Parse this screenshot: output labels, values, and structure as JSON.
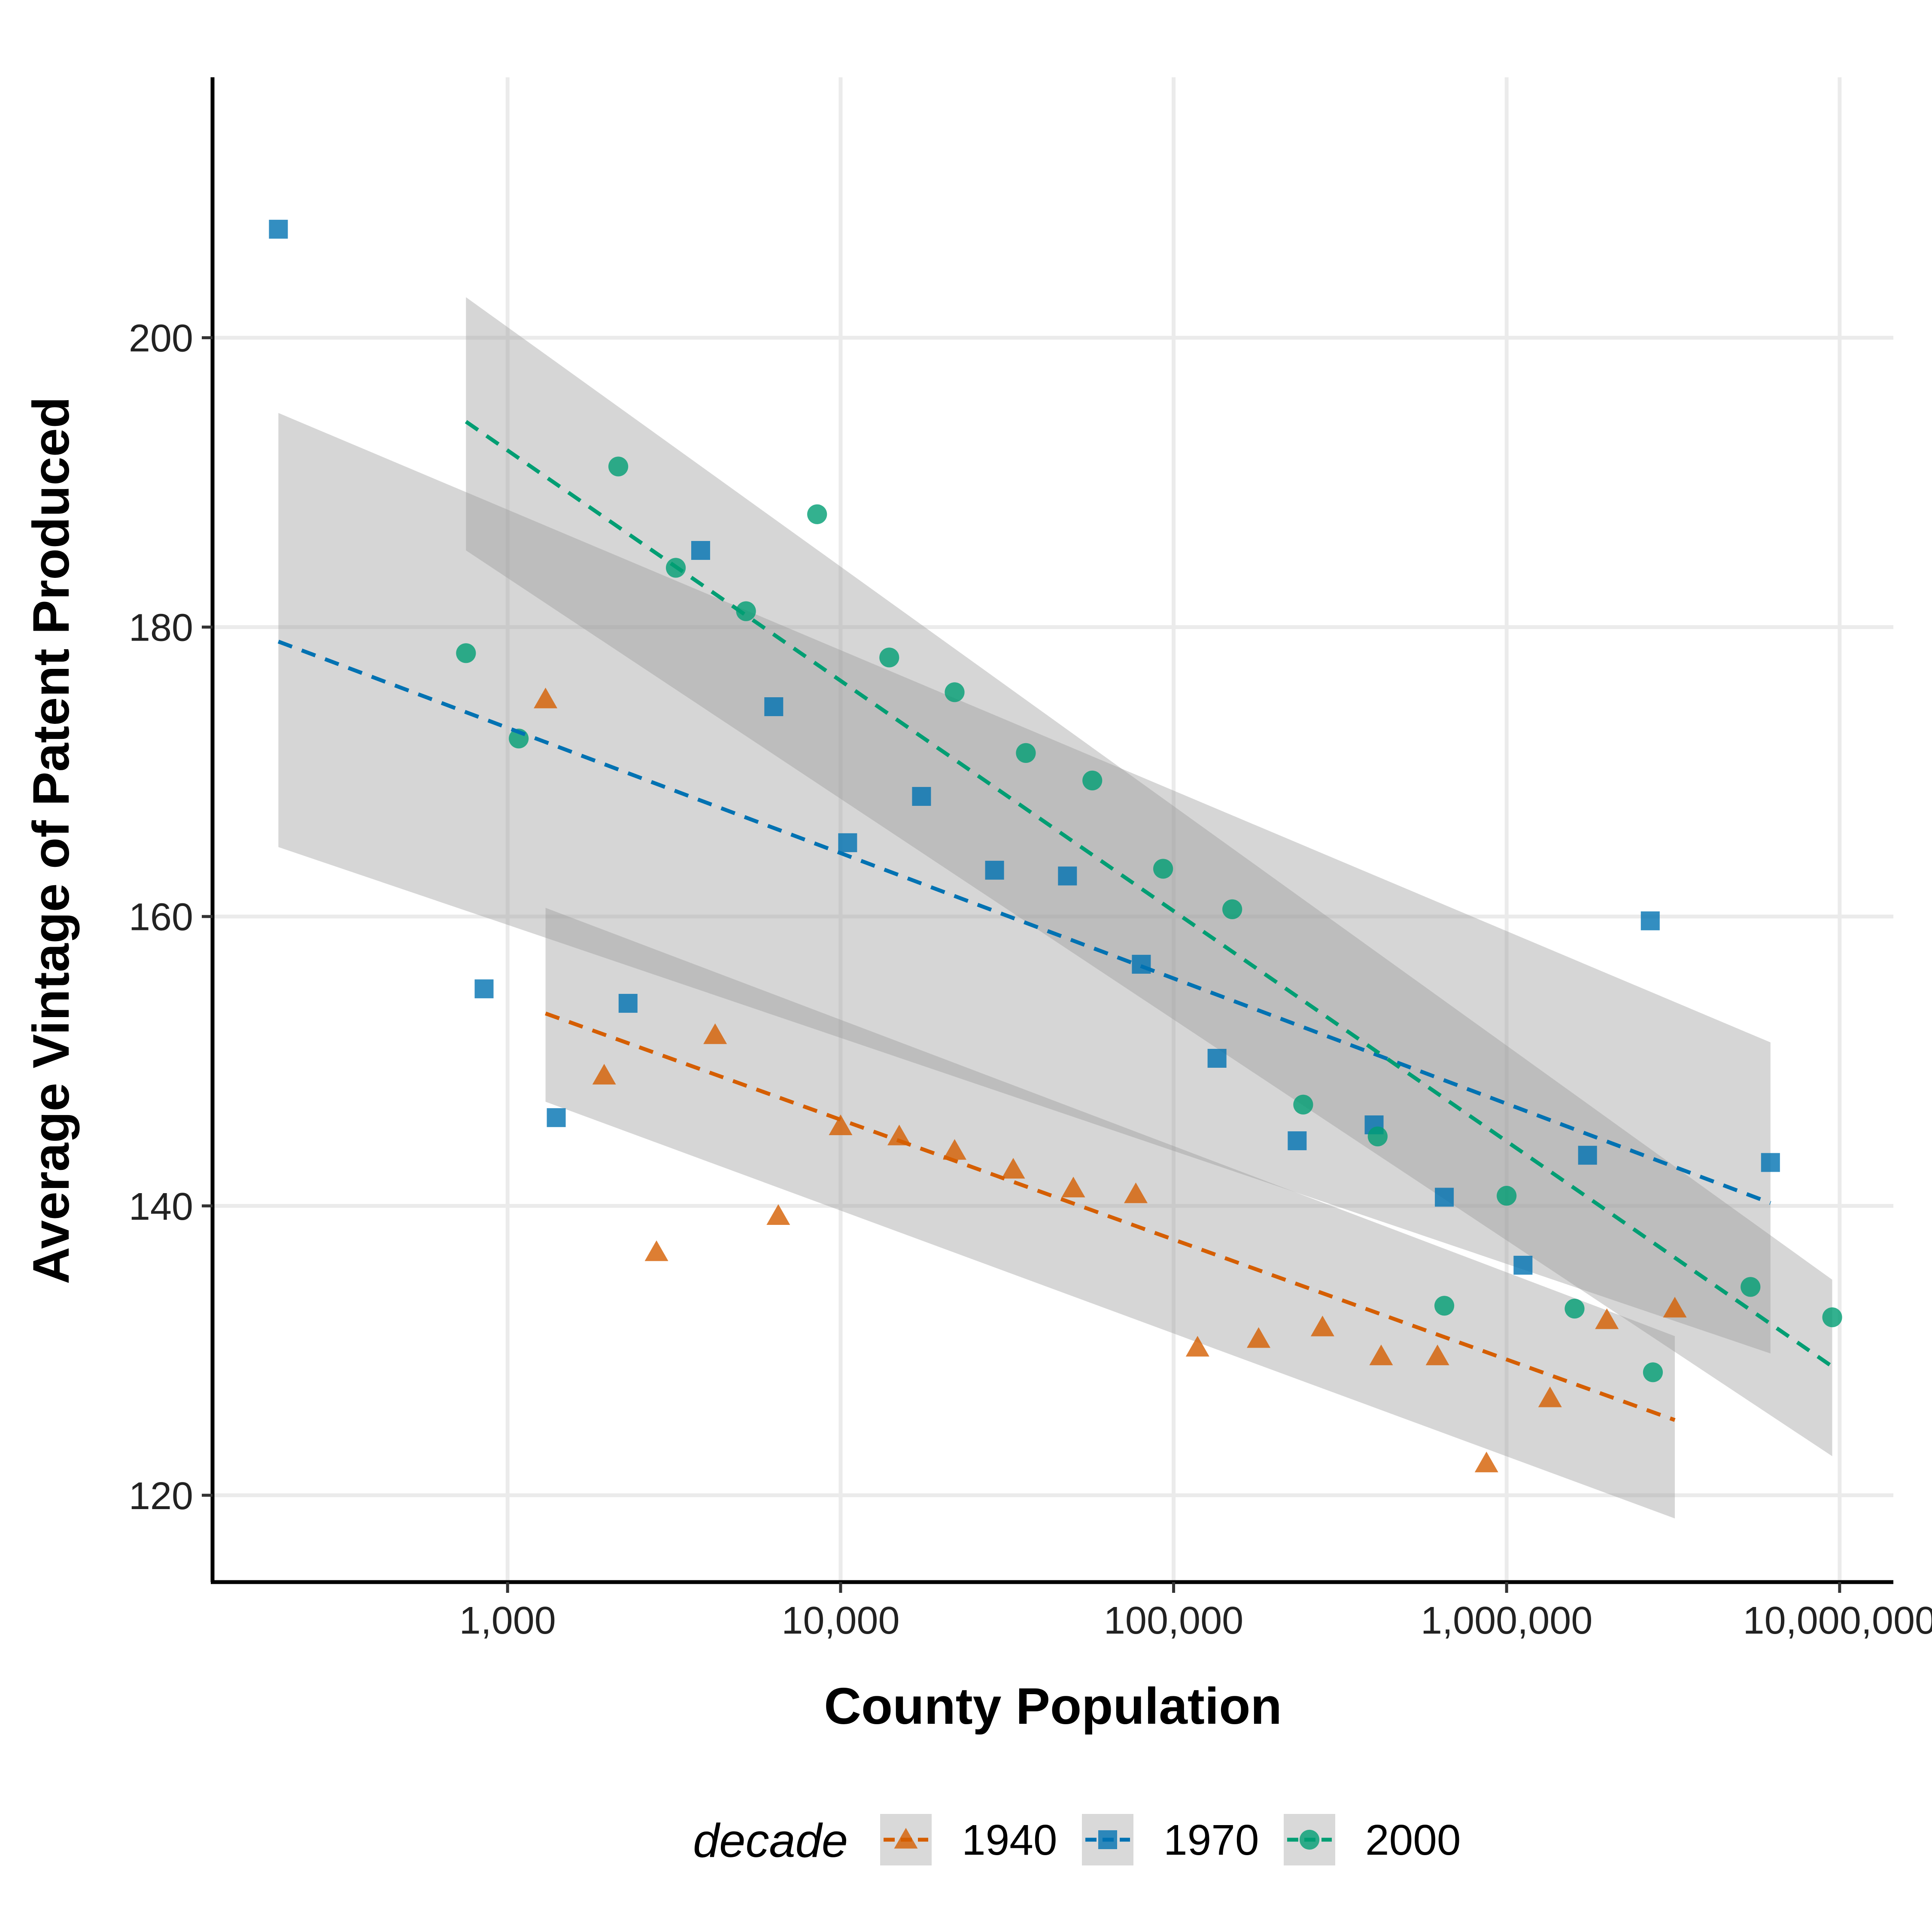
{
  "chart_data": {
    "type": "scatter",
    "xlabel": "County Population",
    "ylabel": "Average Vintage of Patent Produced",
    "x_scale": "log10",
    "xlim": [
      130,
      14500000
    ],
    "ylim": [
      114,
      218
    ],
    "x_ticks": [
      {
        "value": 1000,
        "label": "1,000"
      },
      {
        "value": 10000,
        "label": "10,000"
      },
      {
        "value": 100000,
        "label": "100,000"
      },
      {
        "value": 1000000,
        "label": "1,000,000"
      },
      {
        "value": 10000000,
        "label": "10,000,000"
      }
    ],
    "y_ticks": [
      {
        "value": 120,
        "label": "120"
      },
      {
        "value": 140,
        "label": "140"
      },
      {
        "value": 160,
        "label": "160"
      },
      {
        "value": 180,
        "label": "180"
      },
      {
        "value": 200,
        "label": "200"
      }
    ],
    "grid": true,
    "legend_title": "decade",
    "legend_position": "bottom",
    "series": [
      {
        "name": "1940",
        "marker": "triangle",
        "color": "#D55E00",
        "points": [
          [
            1300,
            175
          ],
          [
            1950,
            149
          ],
          [
            2800,
            136.8
          ],
          [
            4200,
            151.8
          ],
          [
            6500,
            139.3
          ],
          [
            10000,
            145.5
          ],
          [
            15000,
            144.8
          ],
          [
            22000,
            143.8
          ],
          [
            33000,
            142.5
          ],
          [
            50000,
            141.2
          ],
          [
            77000,
            140.8
          ],
          [
            118000,
            130.2
          ],
          [
            180000,
            130.8
          ],
          [
            280000,
            131.6
          ],
          [
            420000,
            129.6
          ],
          [
            620000,
            129.6
          ],
          [
            870000,
            122.2
          ],
          [
            1350000,
            126.7
          ],
          [
            2000000,
            132.1
          ],
          [
            3200000,
            132.9
          ]
        ],
        "trend": {
          "x": [
            1300,
            3200000
          ],
          "y": [
            153.3,
            125.2
          ]
        },
        "band": {
          "x": [
            1300,
            3200000
          ],
          "lower": [
            147.2,
            118.4
          ],
          "upper": [
            160.6,
            131
          ]
        }
      },
      {
        "name": "1970",
        "marker": "square",
        "color": "#0072B2",
        "points": [
          [
            205,
            207.5
          ],
          [
            850,
            155
          ],
          [
            1400,
            146.1
          ],
          [
            2300,
            154
          ],
          [
            3800,
            185.3
          ],
          [
            6300,
            174.5
          ],
          [
            10500,
            165.1
          ],
          [
            17500,
            168.3
          ],
          [
            29000,
            163.2
          ],
          [
            48000,
            162.8
          ],
          [
            80000,
            156.7
          ],
          [
            135000,
            150.2
          ],
          [
            235000,
            144.5
          ],
          [
            400000,
            145.6
          ],
          [
            650000,
            140.6
          ],
          [
            1120000,
            135.9
          ],
          [
            1750000,
            143.5
          ],
          [
            2700000,
            159.7
          ],
          [
            6200000,
            143
          ]
        ],
        "trend": {
          "x": [
            205,
            6200000
          ],
          "y": [
            179,
            140.2
          ]
        },
        "band": {
          "x": [
            205,
            6200000
          ],
          "lower": [
            164.8,
            129.8
          ],
          "upper": [
            194.8,
            151.3
          ]
        }
      },
      {
        "name": "2000",
        "marker": "circle",
        "color": "#009E73",
        "points": [
          [
            750,
            178.2
          ],
          [
            1080,
            172.3
          ],
          [
            2150,
            191.1
          ],
          [
            3200,
            184.1
          ],
          [
            5200,
            181.1
          ],
          [
            8500,
            187.8
          ],
          [
            14000,
            177.9
          ],
          [
            22000,
            175.5
          ],
          [
            36000,
            171.3
          ],
          [
            57000,
            169.4
          ],
          [
            93000,
            163.3
          ],
          [
            150000,
            160.5
          ],
          [
            245000,
            147
          ],
          [
            410000,
            144.8
          ],
          [
            650000,
            133.1
          ],
          [
            1000000,
            140.7
          ],
          [
            1600000,
            132.9
          ],
          [
            2750000,
            128.5
          ],
          [
            5400000,
            134.4
          ],
          [
            9500000,
            132.3
          ]
        ],
        "trend": {
          "x": [
            750,
            9500000
          ],
          "y": [
            194.2,
            128.9
          ]
        },
        "band": {
          "x": [
            750,
            9500000
          ],
          "lower": [
            185.3,
            122.7
          ],
          "upper": [
            202.8,
            134.9
          ]
        }
      }
    ]
  }
}
